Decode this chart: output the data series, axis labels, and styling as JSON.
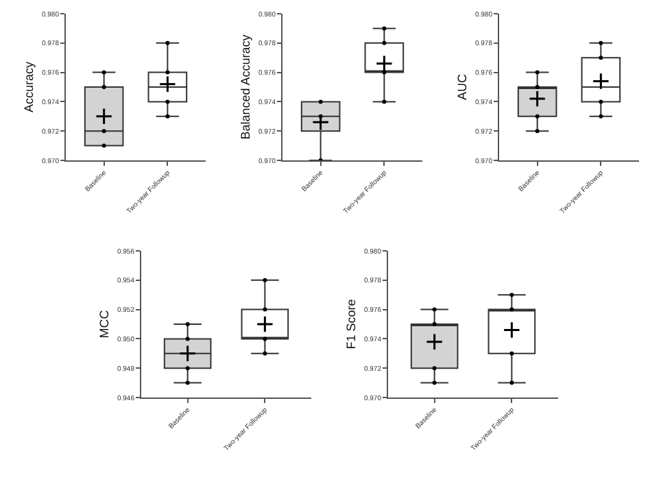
{
  "chart_data": [
    {
      "type": "box",
      "ylabel": "Accuracy",
      "categories": [
        "Baseline",
        "Two-year Followup"
      ],
      "colors": [
        "#d3d3d3",
        "#ffffff"
      ],
      "ylim": [
        0.97,
        0.98
      ],
      "yticks": [
        {
          "value": 0.97,
          "label": "0.970"
        },
        {
          "value": 0.972,
          "label": "0.972"
        },
        {
          "value": 0.974,
          "label": "0.974"
        },
        {
          "value": 0.976,
          "label": "0.976"
        },
        {
          "value": 0.978,
          "label": "0.978"
        },
        {
          "value": 0.98,
          "label": "0.980"
        }
      ],
      "grid": false,
      "boxes": [
        {
          "low": 0.971,
          "q1": 0.971,
          "median": 0.972,
          "q3": 0.975,
          "high": 0.976,
          "mean": 0.973
        },
        {
          "low": 0.973,
          "q1": 0.974,
          "median": 0.975,
          "q3": 0.976,
          "high": 0.978,
          "mean": 0.9752
        }
      ],
      "series": [
        {
          "type": "scatter",
          "color": "#000000",
          "marker": "circle",
          "x": [
            "Baseline",
            "Baseline",
            "Baseline",
            "Baseline",
            "Two-year Followup",
            "Two-year Followup",
            "Two-year Followup",
            "Two-year Followup"
          ],
          "values": [
            0.971,
            0.972,
            0.975,
            0.976,
            0.973,
            0.974,
            0.976,
            0.978
          ]
        }
      ]
    },
    {
      "type": "box",
      "ylabel": "Balanced Accuracy",
      "categories": [
        "Baseline",
        "Two-year Followup"
      ],
      "colors": [
        "#d3d3d3",
        "#ffffff"
      ],
      "ylim": [
        0.97,
        0.98
      ],
      "yticks": [
        {
          "value": 0.97,
          "label": "0.970"
        },
        {
          "value": 0.972,
          "label": "0.972"
        },
        {
          "value": 0.974,
          "label": "0.974"
        },
        {
          "value": 0.976,
          "label": "0.976"
        },
        {
          "value": 0.978,
          "label": "0.978"
        },
        {
          "value": 0.98,
          "label": "0.980"
        }
      ],
      "grid": false,
      "boxes": [
        {
          "low": 0.97,
          "q1": 0.972,
          "median": 0.973,
          "q3": 0.974,
          "high": 0.974,
          "mean": 0.9726
        },
        {
          "low": 0.974,
          "q1": 0.976,
          "median": 0.976,
          "q3": 0.978,
          "high": 0.979,
          "mean": 0.9766
        }
      ],
      "series": [
        {
          "type": "scatter",
          "color": "#000000",
          "marker": "circle",
          "x": [
            "Baseline",
            "Baseline",
            "Baseline",
            "Two-year Followup",
            "Two-year Followup",
            "Two-year Followup",
            "Two-year Followup"
          ],
          "values": [
            0.97,
            0.973,
            0.974,
            0.974,
            0.976,
            0.978,
            0.979
          ]
        }
      ]
    },
    {
      "type": "box",
      "ylabel": "AUC",
      "categories": [
        "Baseline",
        "Two-year Followup"
      ],
      "colors": [
        "#d3d3d3",
        "#ffffff"
      ],
      "ylim": [
        0.97,
        0.98
      ],
      "yticks": [
        {
          "value": 0.97,
          "label": "0.970"
        },
        {
          "value": 0.972,
          "label": "0.972"
        },
        {
          "value": 0.974,
          "label": "0.974"
        },
        {
          "value": 0.976,
          "label": "0.976"
        },
        {
          "value": 0.978,
          "label": "0.978"
        },
        {
          "value": 0.98,
          "label": "0.980"
        }
      ],
      "grid": false,
      "boxes": [
        {
          "low": 0.972,
          "q1": 0.973,
          "median": 0.975,
          "q3": 0.975,
          "high": 0.976,
          "mean": 0.9742
        },
        {
          "low": 0.973,
          "q1": 0.974,
          "median": 0.975,
          "q3": 0.977,
          "high": 0.978,
          "mean": 0.9754
        }
      ],
      "series": [
        {
          "type": "scatter",
          "color": "#000000",
          "marker": "circle",
          "x": [
            "Baseline",
            "Baseline",
            "Baseline",
            "Baseline",
            "Two-year Followup",
            "Two-year Followup",
            "Two-year Followup",
            "Two-year Followup"
          ],
          "values": [
            0.972,
            0.973,
            0.975,
            0.976,
            0.973,
            0.974,
            0.977,
            0.978
          ]
        }
      ]
    },
    {
      "type": "box",
      "ylabel": "MCC",
      "categories": [
        "Baseline",
        "Two-year Followup"
      ],
      "colors": [
        "#d3d3d3",
        "#ffffff"
      ],
      "ylim": [
        0.946,
        0.956
      ],
      "yticks": [
        {
          "value": 0.946,
          "label": "0.946"
        },
        {
          "value": 0.948,
          "label": "0.948"
        },
        {
          "value": 0.95,
          "label": "0.950"
        },
        {
          "value": 0.952,
          "label": "0.952"
        },
        {
          "value": 0.954,
          "label": "0.954"
        },
        {
          "value": 0.956,
          "label": "0.956"
        }
      ],
      "grid": false,
      "boxes": [
        {
          "low": 0.947,
          "q1": 0.948,
          "median": 0.949,
          "q3": 0.95,
          "high": 0.951,
          "mean": 0.949
        },
        {
          "low": 0.949,
          "q1": 0.95,
          "median": 0.95,
          "q3": 0.952,
          "high": 0.954,
          "mean": 0.951
        }
      ],
      "series": [
        {
          "type": "scatter",
          "color": "#000000",
          "marker": "circle",
          "x": [
            "Baseline",
            "Baseline",
            "Baseline",
            "Baseline",
            "Two-year Followup",
            "Two-year Followup",
            "Two-year Followup",
            "Two-year Followup"
          ],
          "values": [
            0.947,
            0.948,
            0.95,
            0.951,
            0.949,
            0.95,
            0.952,
            0.954
          ]
        }
      ]
    },
    {
      "type": "box",
      "ylabel": "F1 Score",
      "categories": [
        "Baseline",
        "Two-year Followup"
      ],
      "colors": [
        "#d3d3d3",
        "#ffffff"
      ],
      "ylim": [
        0.97,
        0.98
      ],
      "yticks": [
        {
          "value": 0.97,
          "label": "0.970"
        },
        {
          "value": 0.972,
          "label": "0.972"
        },
        {
          "value": 0.974,
          "label": "0.974"
        },
        {
          "value": 0.976,
          "label": "0.976"
        },
        {
          "value": 0.978,
          "label": "0.978"
        },
        {
          "value": 0.98,
          "label": "0.980"
        }
      ],
      "grid": false,
      "boxes": [
        {
          "low": 0.971,
          "q1": 0.972,
          "median": 0.975,
          "q3": 0.975,
          "high": 0.976,
          "mean": 0.9738
        },
        {
          "low": 0.971,
          "q1": 0.973,
          "median": 0.976,
          "q3": 0.976,
          "high": 0.977,
          "mean": 0.9746
        }
      ],
      "series": [
        {
          "type": "scatter",
          "color": "#000000",
          "marker": "circle",
          "x": [
            "Baseline",
            "Baseline",
            "Baseline",
            "Baseline",
            "Two-year Followup",
            "Two-year Followup",
            "Two-year Followup",
            "Two-year Followup"
          ],
          "values": [
            0.971,
            0.972,
            0.975,
            0.976,
            0.971,
            0.973,
            0.976,
            0.977
          ]
        }
      ]
    }
  ]
}
